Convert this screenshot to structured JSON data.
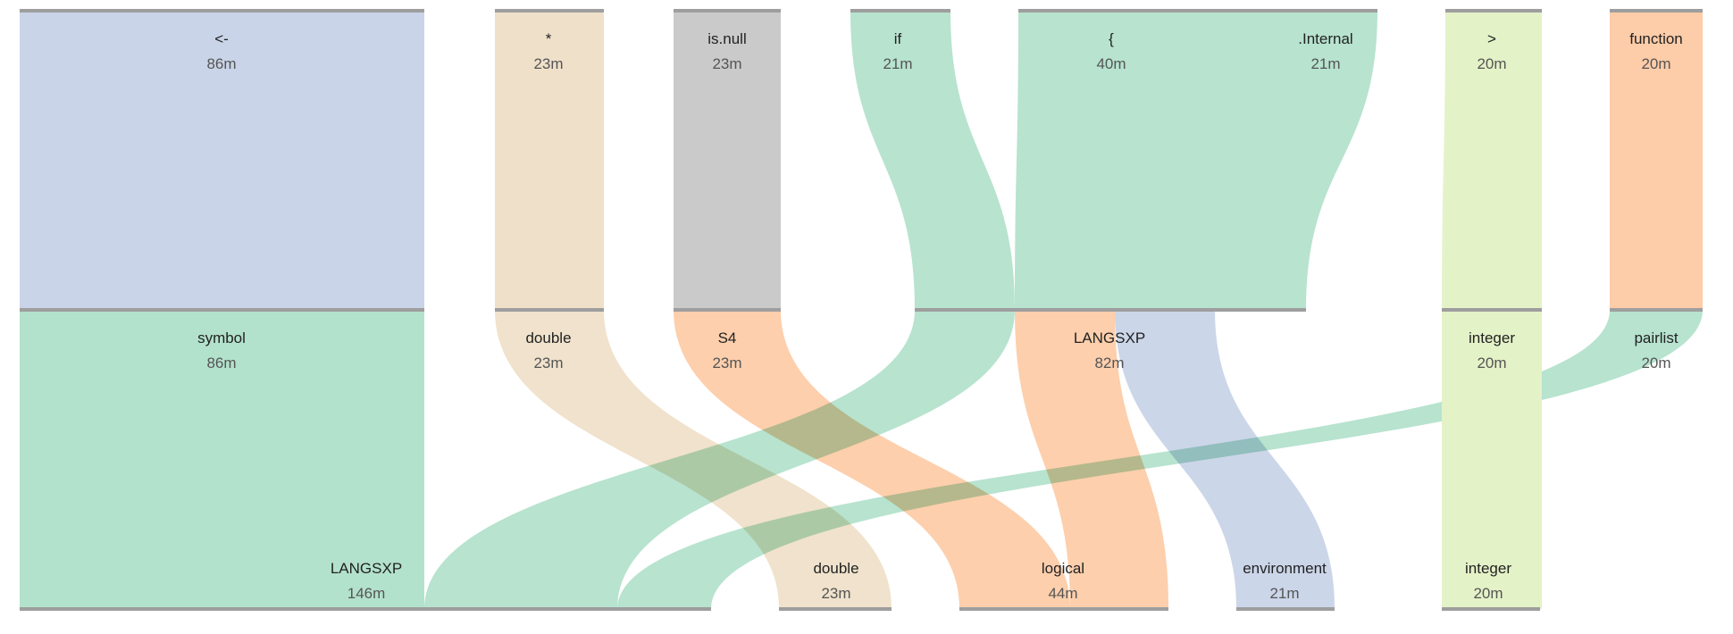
{
  "chart_data": {
    "type": "sankey",
    "levels": [
      {
        "nodes": [
          {
            "id": "n0_0",
            "name": "<-",
            "value": 86,
            "label": "86m",
            "color": "#c9d4e8"
          },
          {
            "id": "n0_1",
            "name": "*",
            "value": 23,
            "label": "23m",
            "color": "#efe0c9"
          },
          {
            "id": "n0_2",
            "name": "is.null",
            "value": 23,
            "label": "23m",
            "color": "#cacaca"
          },
          {
            "id": "n0_3",
            "name": "if",
            "value": 21,
            "label": "21m",
            "color": "#b3e2cc"
          },
          {
            "id": "n0_4",
            "name": "{",
            "value": 40,
            "label": "40m",
            "color": "#b3e2cc"
          },
          {
            "id": "n0_5",
            "name": ".Internal",
            "value": 21,
            "label": "21m",
            "color": "#b3e2cc"
          },
          {
            "id": "n0_6",
            "name": ">",
            "value": 20,
            "label": "20m",
            "color": "#e4f2c7"
          },
          {
            "id": "n0_7",
            "name": "function",
            "value": 20,
            "label": "20m",
            "color": "#fdcca8"
          }
        ]
      },
      {
        "nodes": [
          {
            "id": "n1_0",
            "name": "symbol",
            "value": 86,
            "label": "86m",
            "color": "#b3e2cc"
          },
          {
            "id": "n1_1",
            "name": "double",
            "value": 23,
            "label": "23m",
            "color": "#efe0c9"
          },
          {
            "id": "n1_2",
            "name": "S4",
            "value": 23,
            "label": "23m",
            "color": "#fdcca8"
          },
          {
            "id": "n1_3",
            "name": "LANGSXP",
            "value": 82,
            "label": "82m",
            "color": "#b3e2cc"
          },
          {
            "id": "n1_4",
            "name": "integer",
            "value": 20,
            "label": "20m",
            "color": "#e4f2c7"
          },
          {
            "id": "n1_5",
            "name": "pairlist",
            "value": 20,
            "label": "20m",
            "color": "#b3e2cc"
          }
        ]
      },
      {
        "nodes": [
          {
            "id": "n2_0",
            "name": "LANGSXP",
            "value": 146,
            "label": "146m",
            "color": "#b3e2cc"
          },
          {
            "id": "n2_1",
            "name": "double",
            "value": 23,
            "label": "23m",
            "color": "#efe0c9"
          },
          {
            "id": "n2_2",
            "name": "logical",
            "value": 44,
            "label": "44m",
            "color": "#fdcca8"
          },
          {
            "id": "n2_3",
            "name": "environment",
            "value": 21,
            "label": "21m",
            "color": "#c9d4e8"
          },
          {
            "id": "n2_4",
            "name": "integer",
            "value": 20,
            "label": "20m",
            "color": "#e4f2c7"
          }
        ]
      }
    ],
    "links": [
      {
        "source": "n0_0",
        "target": "n1_0",
        "value": 86,
        "color": "#c9d4e8"
      },
      {
        "source": "n0_1",
        "target": "n1_1",
        "value": 23,
        "color": "#efe0c9"
      },
      {
        "source": "n0_2",
        "target": "n1_2",
        "value": 23,
        "color": "#cacaca"
      },
      {
        "source": "n0_3",
        "target": "n1_3",
        "value": 21,
        "color": "#b3e2cc"
      },
      {
        "source": "n0_4",
        "target": "n1_3",
        "value": 40,
        "color": "#b3e2cc"
      },
      {
        "source": "n0_5",
        "target": "n1_3",
        "value": 21,
        "color": "#b3e2cc"
      },
      {
        "source": "n0_6",
        "target": "n1_4",
        "value": 20,
        "color": "#e4f2c7"
      },
      {
        "source": "n0_7",
        "target": "n1_5",
        "value": 20,
        "color": "#fdcca8"
      },
      {
        "source": "n1_0",
        "target": "n2_0",
        "value": 86,
        "color": "#b3e2cc"
      },
      {
        "source": "n1_3",
        "target": "n2_0",
        "value": 40,
        "color": "#b3e2cc"
      },
      {
        "source": "n1_5",
        "target": "n2_0",
        "value": 20,
        "color": "#b3e2cc"
      },
      {
        "source": "n1_1",
        "target": "n2_1",
        "value": 23,
        "color": "#efe0c9"
      },
      {
        "source": "n1_2",
        "target": "n2_2",
        "value": 23,
        "color": "#fdcca8"
      },
      {
        "source": "n1_3",
        "target": "n2_2",
        "value": 21,
        "color": "#fdcca8"
      },
      {
        "source": "n1_3",
        "target": "n2_3",
        "value": 21,
        "color": "#c9d4e8"
      },
      {
        "source": "n1_4",
        "target": "n2_4",
        "value": 20,
        "color": "#e4f2c7"
      }
    ]
  }
}
